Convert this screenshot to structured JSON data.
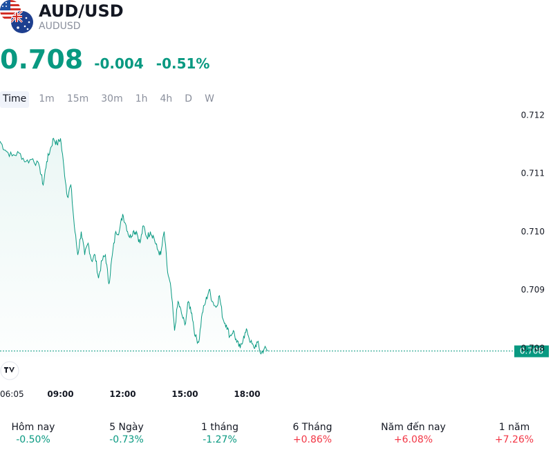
{
  "header": {
    "title": "AUD/USD",
    "symbol": "AUDUSD"
  },
  "quote": {
    "price": "0.708",
    "change": "-0.004",
    "change_pct": "-0.51%",
    "color": "#089981"
  },
  "tabs": [
    {
      "label": "Time",
      "active": true
    },
    {
      "label": "1m"
    },
    {
      "label": "15m"
    },
    {
      "label": "30m"
    },
    {
      "label": "1h"
    },
    {
      "label": "4h"
    },
    {
      "label": "D"
    },
    {
      "label": "W"
    }
  ],
  "chart_data": {
    "type": "area",
    "x_ticks": [
      "06:05",
      "09:00",
      "12:00",
      "15:00",
      "18:00"
    ],
    "y_ticks": [
      "0.712",
      "0.711",
      "0.710",
      "0.709",
      "0.708"
    ],
    "ylim": [
      0.70785,
      0.7121
    ],
    "current_label": "0.708",
    "current_value": 0.70795,
    "line_color": "#089981",
    "series": [
      {
        "x": [
          "06:05",
          "06:20",
          "06:40",
          "07:00",
          "07:20",
          "07:40",
          "08:00",
          "08:10",
          "08:20",
          "08:30",
          "08:40",
          "08:50",
          "09:00",
          "09:10",
          "09:20",
          "09:30",
          "09:40",
          "09:50",
          "10:00",
          "10:10",
          "10:20",
          "10:30",
          "10:40",
          "10:50",
          "11:00",
          "11:10",
          "11:20",
          "11:30",
          "11:40",
          "11:50",
          "12:00",
          "12:10",
          "12:20",
          "12:30",
          "12:40",
          "12:50",
          "13:00",
          "13:10",
          "13:20",
          "13:30",
          "13:40",
          "13:50",
          "14:00",
          "14:10",
          "14:20",
          "14:30",
          "14:40",
          "14:50",
          "15:00",
          "15:10",
          "15:20",
          "15:30",
          "15:40",
          "15:50",
          "16:00",
          "16:10",
          "16:20",
          "16:30",
          "16:40",
          "16:50",
          "17:00",
          "17:10",
          "17:20",
          "17:30",
          "17:40",
          "17:50",
          "18:00",
          "18:10",
          "18:20",
          "18:30",
          "18:40",
          "18:50",
          "19:00"
        ],
        "values": [
          0.71155,
          0.7114,
          0.7113,
          0.71135,
          0.7112,
          0.71125,
          0.7111,
          0.7108,
          0.7112,
          0.7114,
          0.7116,
          0.7115,
          0.7116,
          0.7111,
          0.7106,
          0.7108,
          0.7101,
          0.7096,
          0.71,
          0.7096,
          0.7098,
          0.7095,
          0.7096,
          0.7092,
          0.7095,
          0.7096,
          0.7091,
          0.7096,
          0.71,
          0.71,
          0.7103,
          0.7101,
          0.7099,
          0.71,
          0.71,
          0.7098,
          0.7101,
          0.7099,
          0.71,
          0.7099,
          0.7097,
          0.7096,
          0.71,
          0.7093,
          0.709,
          0.7083,
          0.7088,
          0.7086,
          0.7084,
          0.7088,
          0.7086,
          0.7082,
          0.7081,
          0.7086,
          0.7088,
          0.709,
          0.7088,
          0.7087,
          0.7089,
          0.7085,
          0.7084,
          0.7082,
          0.7083,
          0.7081,
          0.708,
          0.7082,
          0.7083,
          0.7081,
          0.708,
          0.7081,
          0.7079,
          0.708,
          0.70795
        ]
      }
    ]
  },
  "periods": [
    {
      "label": "Hôm nay",
      "value": "-0.50%",
      "dir": "neg"
    },
    {
      "label": "5 Ngày",
      "value": "-0.73%",
      "dir": "neg"
    },
    {
      "label": "1 tháng",
      "value": "-1.27%",
      "dir": "neg"
    },
    {
      "label": "6 Tháng",
      "value": "+0.86%",
      "dir": "pos"
    },
    {
      "label": "Năm đến nay",
      "value": "+6.08%",
      "dir": "pos"
    },
    {
      "label": "1 năm",
      "value": "+7.26%",
      "dir": "pos"
    }
  ]
}
